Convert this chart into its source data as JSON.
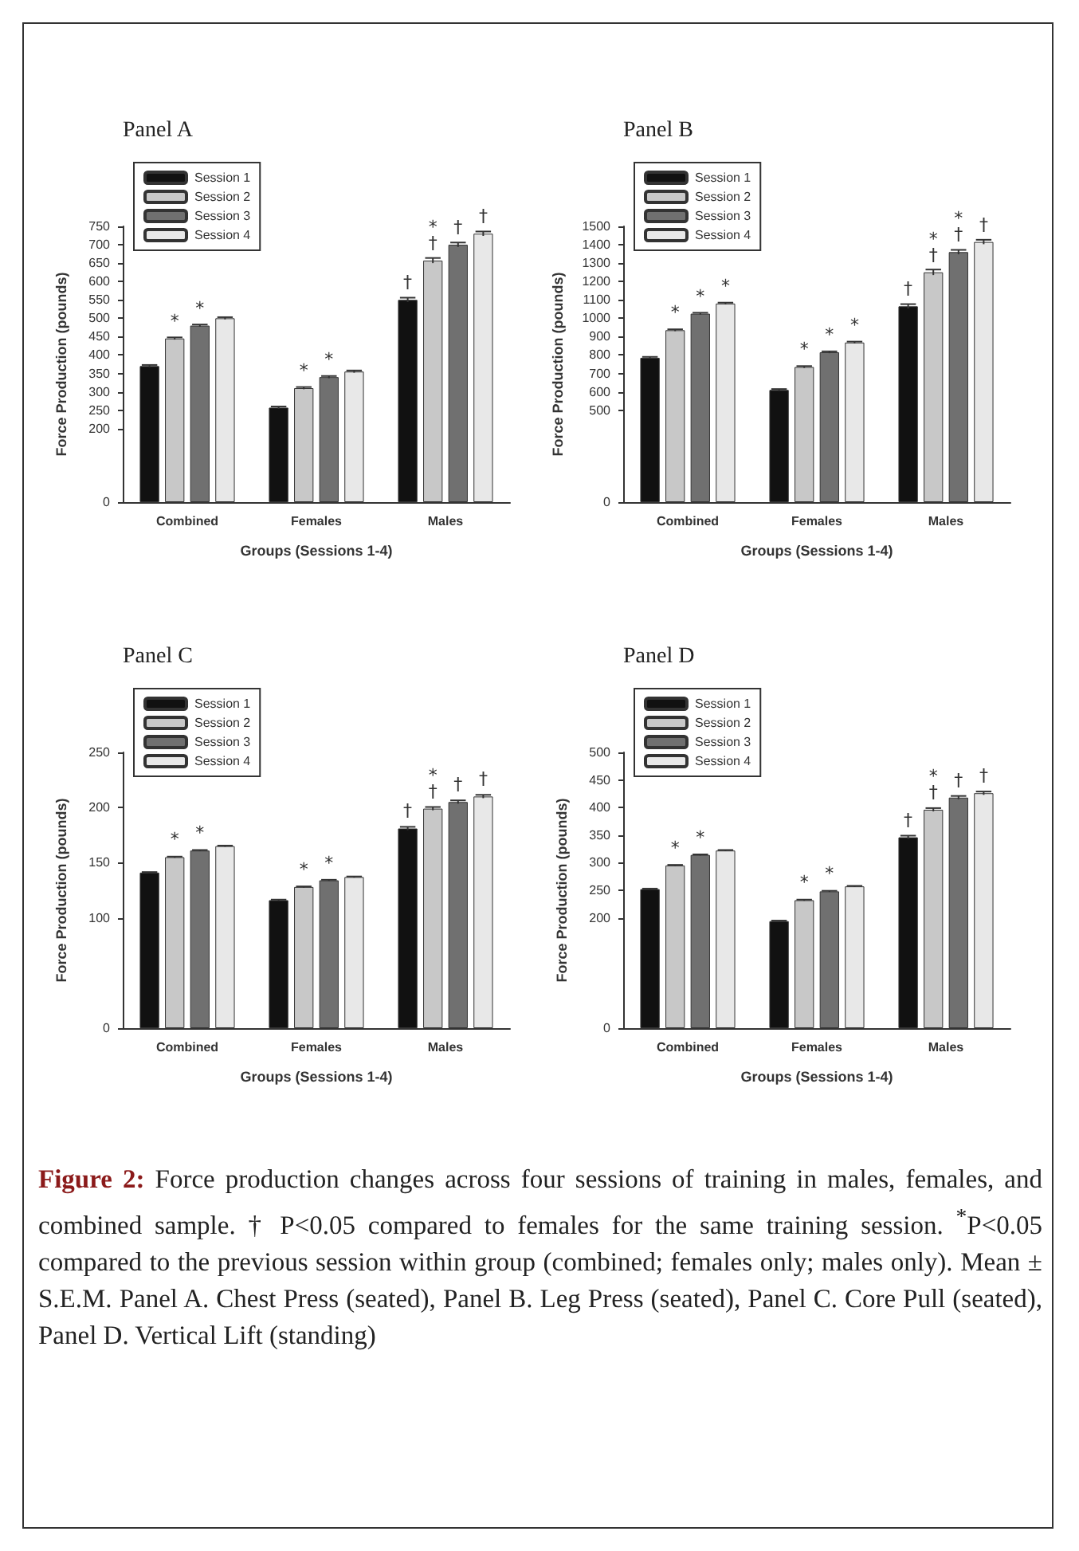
{
  "chart_data": [
    {
      "type": "bar",
      "title": "Panel A",
      "xlabel": "Groups (Sessions 1-4)",
      "ylabel": "Force Production (pounds)",
      "categories": [
        "Combined",
        "Females",
        "Males"
      ],
      "legend": "top left",
      "grid": false,
      "ylim": [
        0,
        750
      ],
      "yticks": [
        0,
        200,
        250,
        300,
        350,
        400,
        450,
        500,
        550,
        600,
        650,
        700,
        750
      ],
      "series": [
        {
          "name": "Session 1",
          "color": "#111111",
          "values": [
            370,
            257,
            550
          ],
          "errors": [
            3,
            3,
            6
          ],
          "value_labels": [
            null,
            null,
            "†"
          ]
        },
        {
          "name": "Session 2",
          "color": "#c8c8c8",
          "values": [
            445,
            310,
            657
          ],
          "errors": [
            3,
            3,
            7
          ],
          "value_labels": [
            "*",
            "*",
            "*\n†"
          ]
        },
        {
          "name": "Session 3",
          "color": "#707070",
          "values": [
            480,
            340,
            700
          ],
          "errors": [
            3,
            3,
            6
          ],
          "value_labels": [
            "*",
            "*",
            "†"
          ]
        },
        {
          "name": "Session 4",
          "color": "#e8e8e8",
          "values": [
            500,
            355,
            730
          ],
          "errors": [
            3,
            3,
            6
          ],
          "value_labels": [
            null,
            null,
            "†"
          ]
        }
      ]
    },
    {
      "type": "bar",
      "title": "Panel B",
      "xlabel": "Groups (Sessions 1-4)",
      "ylabel": "Force Production (pounds)",
      "categories": [
        "Combined",
        "Females",
        "Males"
      ],
      "legend": "top left",
      "grid": false,
      "ylim": [
        0,
        1500
      ],
      "yticks": [
        0,
        500,
        600,
        700,
        800,
        900,
        1000,
        1100,
        1200,
        1300,
        1400,
        1500
      ],
      "series": [
        {
          "name": "Session 1",
          "color": "#111111",
          "values": [
            785,
            610,
            1065
          ],
          "errors": [
            5,
            5,
            12
          ],
          "value_labels": [
            null,
            null,
            "†"
          ]
        },
        {
          "name": "Session 2",
          "color": "#c8c8c8",
          "values": [
            935,
            735,
            1250
          ],
          "errors": [
            5,
            5,
            15
          ],
          "value_labels": [
            "*",
            "*",
            "*\n†"
          ]
        },
        {
          "name": "Session 3",
          "color": "#707070",
          "values": [
            1025,
            815,
            1360
          ],
          "errors": [
            5,
            5,
            12
          ],
          "value_labels": [
            "*",
            "*",
            "*\n†"
          ]
        },
        {
          "name": "Session 4",
          "color": "#e8e8e8",
          "values": [
            1080,
            868,
            1415
          ],
          "errors": [
            5,
            5,
            12
          ],
          "value_labels": [
            "*",
            "*",
            "†"
          ]
        }
      ]
    },
    {
      "type": "bar",
      "title": "Panel C",
      "xlabel": "Groups (Sessions 1-4)",
      "ylabel": "Force Production (pounds)",
      "categories": [
        "Combined",
        "Females",
        "Males"
      ],
      "legend": "top left",
      "grid": false,
      "ylim": [
        0,
        250
      ],
      "yticks": [
        0,
        100,
        150,
        200,
        250
      ],
      "series": [
        {
          "name": "Session 1",
          "color": "#111111",
          "values": [
            141,
            116,
            181
          ],
          "errors": [
            0.5,
            0.5,
            1.5
          ],
          "value_labels": [
            null,
            null,
            "†"
          ]
        },
        {
          "name": "Session 2",
          "color": "#c8c8c8",
          "values": [
            155,
            128,
            199
          ],
          "errors": [
            0.5,
            0.5,
            1.5
          ],
          "value_labels": [
            "*",
            "*",
            "*\n†"
          ]
        },
        {
          "name": "Session 3",
          "color": "#707070",
          "values": [
            161,
            134,
            205
          ],
          "errors": [
            0.5,
            0.5,
            1.5
          ],
          "value_labels": [
            "*",
            "*",
            "†"
          ]
        },
        {
          "name": "Session 4",
          "color": "#e8e8e8",
          "values": [
            165,
            137,
            210
          ],
          "errors": [
            0.5,
            0.5,
            1.5
          ],
          "value_labels": [
            null,
            null,
            "†"
          ]
        }
      ]
    },
    {
      "type": "bar",
      "title": "Panel D",
      "xlabel": "Groups (Sessions 1-4)",
      "ylabel": "Force Production (pounds)",
      "categories": [
        "Combined",
        "Females",
        "Males"
      ],
      "legend": "top left",
      "grid": false,
      "ylim": [
        0,
        500
      ],
      "yticks": [
        0,
        200,
        250,
        300,
        350,
        400,
        450,
        500
      ],
      "series": [
        {
          "name": "Session 1",
          "color": "#111111",
          "values": [
            252,
            194,
            346
          ],
          "errors": [
            1,
            1,
            3
          ],
          "value_labels": [
            null,
            null,
            "†"
          ]
        },
        {
          "name": "Session 2",
          "color": "#c8c8c8",
          "values": [
            295,
            232,
            396
          ],
          "errors": [
            1,
            1,
            3
          ],
          "value_labels": [
            "*",
            "*",
            "*\n†"
          ]
        },
        {
          "name": "Session 3",
          "color": "#707070",
          "values": [
            314,
            248,
            418
          ],
          "errors": [
            1,
            1,
            3
          ],
          "value_labels": [
            "*",
            "*",
            "†"
          ]
        },
        {
          "name": "Session 4",
          "color": "#e8e8e8",
          "values": [
            322,
            257,
            426
          ],
          "errors": [
            1,
            1,
            3
          ],
          "value_labels": [
            null,
            null,
            "†"
          ]
        }
      ],
      "annotations": [
        "Figure 2: Force production changes across four sessions of training in males, females, and combined sample. † P<0.05 compared to females for the same training session. $^{*}$P<0.05 compared to the previous session within group (combined; females only; males only). Mean ± S.E.M. Panel A. Chest Press (seated), Panel B. Leg Press (seated), Panel C. Core Pull (seated), Panel D. Vertical Lift (standing)"
      ]
    }
  ]
}
